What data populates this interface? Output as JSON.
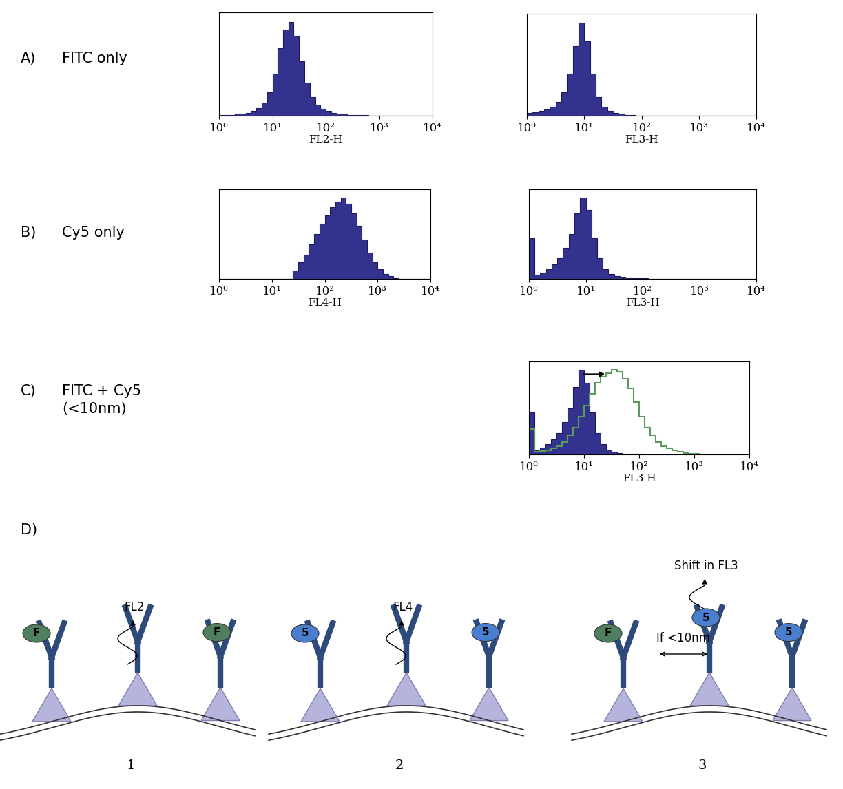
{
  "chart_data": [
    {
      "type": "histogram",
      "xlabel": "FL2-H",
      "log": "x",
      "color": "#33338f",
      "bins": [
        1,
        1.26,
        1.58,
        2,
        2.51,
        3.16,
        3.98,
        5.01,
        6.31,
        7.94,
        10,
        12.6,
        15.8,
        20,
        25.1,
        31.6,
        39.8,
        50.1,
        63.1,
        79.4,
        100,
        126,
        158,
        200,
        251,
        316,
        398,
        501,
        631,
        794,
        1000,
        1259,
        1585,
        1995,
        2512,
        3162,
        3981,
        5012,
        6310,
        7943,
        10000
      ],
      "counts": [
        1,
        1,
        1,
        2,
        2,
        3,
        5,
        8,
        14,
        25,
        45,
        72,
        92,
        100,
        85,
        58,
        35,
        20,
        12,
        7,
        5,
        3,
        2,
        2,
        1,
        1,
        1,
        1,
        0,
        0,
        0,
        0,
        0,
        0,
        0,
        0,
        0,
        0,
        0,
        0
      ],
      "xlim": [
        1,
        10000
      ],
      "xticks": [
        {
          "value": 1,
          "label": "10⁰"
        },
        {
          "value": 10,
          "label": "10¹"
        },
        {
          "value": 100,
          "label": "10²"
        },
        {
          "value": 1000,
          "label": "10³"
        },
        {
          "value": 10000,
          "label": "10⁴"
        }
      ],
      "ylim": [
        0,
        110
      ],
      "tick_labels": "x"
    },
    {
      "type": "histogram",
      "xlabel": "FL3-H",
      "log": "x",
      "color": "#33338f",
      "bins": [
        1,
        1.26,
        1.58,
        2,
        2.51,
        3.16,
        3.98,
        5.01,
        6.31,
        7.94,
        10,
        12.6,
        15.8,
        20,
        25.1,
        31.6,
        39.8,
        50.1,
        63.1,
        79.4,
        100,
        126,
        158,
        200,
        251,
        316,
        398,
        501,
        631,
        794,
        1000,
        1259,
        1585,
        1995,
        2512,
        3162,
        3981,
        5012,
        6310,
        7943,
        10000
      ],
      "counts": [
        3,
        4,
        5,
        7,
        10,
        15,
        25,
        45,
        75,
        100,
        80,
        45,
        20,
        10,
        5,
        3,
        2,
        1,
        1,
        0,
        0,
        0,
        0,
        0,
        0,
        0,
        0,
        0,
        0,
        0,
        0,
        0,
        0,
        0,
        0,
        0,
        0,
        0,
        0,
        0
      ],
      "xlim": [
        1,
        10000
      ],
      "xticks": [
        {
          "value": 1,
          "label": "10⁰"
        },
        {
          "value": 10,
          "label": "10¹"
        },
        {
          "value": 100,
          "label": "10²"
        },
        {
          "value": 1000,
          "label": "10³"
        },
        {
          "value": 10000,
          "label": "10⁴"
        }
      ],
      "ylim": [
        0,
        110
      ],
      "tick_labels": "x"
    },
    {
      "type": "histogram",
      "xlabel": "FL4-H",
      "log": "x",
      "color": "#33338f",
      "bins": [
        1,
        1.26,
        1.58,
        2,
        2.51,
        3.16,
        3.98,
        5.01,
        6.31,
        7.94,
        10,
        12.6,
        15.8,
        20,
        25.1,
        31.6,
        39.8,
        50.1,
        63.1,
        79.4,
        100,
        126,
        158,
        200,
        251,
        316,
        398,
        501,
        631,
        794,
        1000,
        1259,
        1585,
        1995,
        2512,
        3162,
        3981,
        5012,
        6310,
        7943,
        10000
      ],
      "counts": [
        0,
        0,
        0,
        0,
        0,
        0,
        0,
        0,
        0,
        0,
        0,
        0,
        0,
        0,
        10,
        20,
        30,
        42,
        55,
        68,
        78,
        88,
        95,
        100,
        92,
        80,
        65,
        48,
        32,
        20,
        12,
        6,
        3,
        1,
        0,
        0,
        0,
        0,
        0,
        0
      ],
      "xlim": [
        1,
        10000
      ],
      "xticks": [
        {
          "value": 1,
          "label": "10⁰"
        },
        {
          "value": 10,
          "label": "10¹"
        },
        {
          "value": 100,
          "label": "10²"
        },
        {
          "value": 1000,
          "label": "10³"
        },
        {
          "value": 10000,
          "label": "10⁴"
        }
      ],
      "ylim": [
        0,
        110
      ],
      "tick_labels": "x"
    },
    {
      "type": "histogram",
      "xlabel": "FL3-H",
      "log": "x",
      "color": "#33338f",
      "bins": [
        1,
        1.26,
        1.58,
        2,
        2.51,
        3.16,
        3.98,
        5.01,
        6.31,
        7.94,
        10,
        12.6,
        15.8,
        20,
        25.1,
        31.6,
        39.8,
        50.1,
        63.1,
        79.4,
        100,
        126,
        158,
        200,
        251,
        316,
        398,
        501,
        631,
        794,
        1000,
        1259,
        1585,
        1995,
        2512,
        3162,
        3981,
        5012,
        6310,
        7943,
        10000
      ],
      "counts": [
        50,
        5,
        8,
        12,
        18,
        25,
        38,
        55,
        80,
        100,
        85,
        50,
        25,
        12,
        6,
        3,
        2,
        1,
        1,
        1,
        1,
        0,
        0,
        0,
        0,
        0,
        0,
        0,
        0,
        0,
        0,
        0,
        0,
        0,
        0,
        0,
        0,
        0,
        0,
        0
      ],
      "xlim": [
        1,
        10000
      ],
      "xticks": [
        {
          "value": 1,
          "label": "10⁰"
        },
        {
          "value": 10,
          "label": "10¹"
        },
        {
          "value": 100,
          "label": "10²"
        },
        {
          "value": 1000,
          "label": "10³"
        },
        {
          "value": 10000,
          "label": "10⁴"
        }
      ],
      "ylim": [
        0,
        110
      ],
      "tick_labels": "x"
    },
    {
      "type": "histogram",
      "xlabel": "FL3-H",
      "log": "x",
      "bins": [
        1,
        1.26,
        1.58,
        2,
        2.51,
        3.16,
        3.98,
        5.01,
        6.31,
        7.94,
        10,
        12.6,
        15.8,
        20,
        25.1,
        31.6,
        39.8,
        50.1,
        63.1,
        79.4,
        100,
        126,
        158,
        200,
        251,
        316,
        398,
        501,
        631,
        794,
        1000,
        1259,
        1585,
        1995,
        2512,
        3162,
        3981,
        5012,
        6310,
        7943,
        10000
      ],
      "series": [
        {
          "type": "histogram",
          "color": "#33338f",
          "counts": [
            50,
            5,
            8,
            12,
            18,
            25,
            38,
            55,
            80,
            100,
            85,
            50,
            25,
            12,
            6,
            3,
            2,
            1,
            1,
            1,
            1,
            0,
            0,
            0,
            0,
            0,
            0,
            0,
            0,
            0,
            0,
            0,
            0,
            0,
            0,
            0,
            0,
            0,
            0,
            0
          ]
        },
        {
          "type": "step",
          "color": "#5a9a5a",
          "counts": [
            30,
            3,
            4,
            5,
            7,
            10,
            15,
            22,
            32,
            45,
            58,
            72,
            85,
            92,
            96,
            100,
            98,
            90,
            78,
            62,
            45,
            32,
            22,
            15,
            10,
            7,
            5,
            3,
            2,
            1,
            1,
            0,
            0,
            0,
            0,
            0,
            0,
            0,
            0,
            0
          ]
        }
      ],
      "xlim": [
        1,
        10000
      ],
      "xticks": [
        {
          "value": 1,
          "label": "10⁰"
        },
        {
          "value": 10,
          "label": "10¹"
        },
        {
          "value": 100,
          "label": "10²"
        },
        {
          "value": 1000,
          "label": "10³"
        },
        {
          "value": 10000,
          "label": "10⁴"
        }
      ],
      "ylim": [
        0,
        110
      ],
      "tick_labels": "x"
    }
  ],
  "panels": [
    {
      "label": "A)",
      "title": [
        "FITC only"
      ]
    },
    {
      "label": "B)",
      "title": [
        "Cy5 only"
      ]
    },
    {
      "label": "C)",
      "title": [
        "FITC + Cy5",
        "(<10nm)"
      ]
    }
  ],
  "diagram": {
    "label": "D)",
    "cells": [
      {
        "number": "1",
        "signal": "FL2",
        "tags": [
          "F",
          "F"
        ]
      },
      {
        "number": "2",
        "signal": "FL4",
        "tags": [
          "5",
          "5"
        ]
      },
      {
        "number": "3",
        "signal": "Shift in FL3",
        "distance": "If <10nm",
        "tags": [
          "F",
          "5",
          "5"
        ]
      }
    ]
  }
}
